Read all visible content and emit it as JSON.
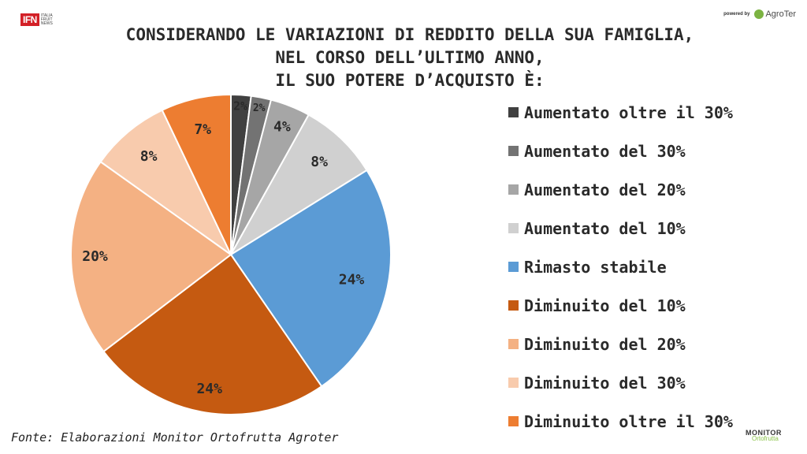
{
  "branding": {
    "ifn_mark": "IFN",
    "ifn_sub": [
      "ITALIA",
      "FRUIT",
      "NEWS"
    ],
    "powered_by": "powered by",
    "agroter": "AgroTer",
    "monitor_line1": "MONITOR",
    "monitor_line2": "Ortofrutta"
  },
  "chart_data": {
    "type": "pie",
    "title_lines": [
      "CONSIDERANDO LE VARIAZIONI DI REDDITO DELLA SUA FAMIGLIA,",
      "NEL CORSO DELL’ULTIMO ANNO,",
      "IL SUO POTERE D’ACQUISTO È:"
    ],
    "categories": [
      "Aumentato oltre il 30%",
      "Aumentato del 30%",
      "Aumentato del 20%",
      "Aumentato del 10%",
      "Rimasto stabile",
      "Diminuito del 10%",
      "Diminuito del 20%",
      "Diminuito del 30%",
      "Diminuito oltre il 30%"
    ],
    "values": [
      2,
      2,
      4,
      8,
      24,
      24,
      20,
      8,
      7
    ],
    "labels": [
      "2%",
      "2%",
      "4%",
      "8%",
      "24%",
      "24%",
      "20%",
      "8%",
      "7%"
    ],
    "colors": [
      "#404040",
      "#737373",
      "#a6a6a6",
      "#d0d0d0",
      "#5b9bd5",
      "#c55a11",
      "#f4b183",
      "#f8cbad",
      "#ed7d31"
    ],
    "legend": "right",
    "start": "top, clockwise"
  },
  "source": "Fonte: Elaborazioni Monitor Ortofrutta Agroter"
}
